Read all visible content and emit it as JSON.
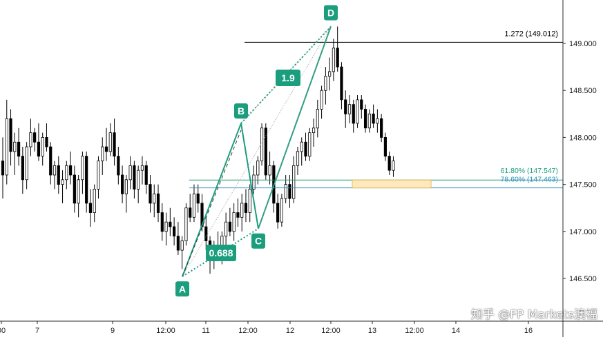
{
  "chart_data": {
    "type": "candlestick",
    "instrument_note": "USDJPY-style price chart with Gartley/ABCD harmonic pattern",
    "y_range": [
      146.2,
      149.45
    ],
    "y_ticks": [
      "146.500",
      "147.000",
      "147.500",
      "148.000",
      "148.500",
      "149.000"
    ],
    "x_ticks": [
      "00",
      "7",
      "9",
      "12:00",
      "11",
      "12:00",
      "12",
      "12:00",
      "13",
      "12:00",
      "14",
      "16"
    ],
    "candle_colors": {
      "up": "#ffffff",
      "down": "#000000",
      "wick": "#000000"
    },
    "pattern_color": "#1a9e7e",
    "pattern_points": [
      {
        "label": "A",
        "price": 146.52
      },
      {
        "label": "B",
        "price": 148.15
      },
      {
        "label": "C",
        "price": 147.03
      },
      {
        "label": "D",
        "price": 149.18
      }
    ],
    "ratios": [
      {
        "label": "0.688"
      },
      {
        "label": "1.9"
      }
    ],
    "levels": [
      {
        "label": "1.272 (149.012)",
        "price": 149.012,
        "color": "#000000"
      },
      {
        "label": "61.80% (147.547)",
        "price": 147.547,
        "color": "#1a9e7e"
      },
      {
        "label": "78.60% (147.463)",
        "price": 147.463,
        "color": "#2a8fbf"
      }
    ],
    "zone": {
      "from": 147.463,
      "to": 147.547,
      "fill": "#fde9c0",
      "stroke": "#f0b64a"
    },
    "ohlc": [
      [
        147.75,
        148.0,
        147.35,
        147.6
      ],
      [
        147.6,
        148.4,
        147.5,
        148.2
      ],
      [
        148.2,
        148.3,
        147.7,
        147.85
      ],
      [
        147.85,
        148.05,
        147.6,
        147.95
      ],
      [
        147.95,
        148.1,
        147.7,
        147.8
      ],
      [
        147.8,
        147.9,
        147.4,
        147.55
      ],
      [
        147.55,
        147.95,
        147.45,
        147.9
      ],
      [
        147.9,
        148.2,
        147.8,
        148.05
      ],
      [
        148.05,
        148.1,
        147.85,
        147.95
      ],
      [
        147.95,
        148.15,
        147.75,
        147.8
      ],
      [
        147.8,
        148.05,
        147.7,
        148.0
      ],
      [
        148.0,
        148.15,
        147.85,
        147.9
      ],
      [
        147.9,
        147.95,
        147.5,
        147.6
      ],
      [
        147.6,
        147.75,
        147.45,
        147.7
      ],
      [
        147.7,
        147.8,
        147.4,
        147.5
      ],
      [
        147.5,
        147.65,
        147.3,
        147.55
      ],
      [
        147.55,
        147.75,
        147.45,
        147.7
      ],
      [
        147.7,
        147.85,
        147.5,
        147.6
      ],
      [
        147.6,
        147.7,
        147.2,
        147.3
      ],
      [
        147.3,
        147.6,
        147.15,
        147.55
      ],
      [
        147.55,
        147.85,
        147.4,
        147.8
      ],
      [
        147.8,
        147.85,
        147.2,
        147.3
      ],
      [
        147.3,
        147.45,
        147.05,
        147.2
      ],
      [
        147.2,
        147.5,
        147.1,
        147.45
      ],
      [
        147.45,
        147.8,
        147.35,
        147.75
      ],
      [
        147.75,
        148.0,
        147.6,
        147.9
      ],
      [
        147.9,
        148.1,
        147.75,
        147.85
      ],
      [
        147.85,
        148.15,
        147.8,
        148.05
      ],
      [
        148.05,
        148.2,
        147.7,
        147.8
      ],
      [
        147.8,
        147.9,
        147.5,
        147.6
      ],
      [
        147.6,
        147.7,
        147.3,
        147.4
      ],
      [
        147.4,
        147.6,
        147.2,
        147.55
      ],
      [
        147.55,
        147.8,
        147.45,
        147.7
      ],
      [
        147.7,
        147.75,
        147.35,
        147.45
      ],
      [
        147.45,
        147.7,
        147.3,
        147.65
      ],
      [
        147.65,
        147.8,
        147.5,
        147.7
      ],
      [
        147.7,
        147.75,
        147.4,
        147.5
      ],
      [
        147.5,
        147.6,
        147.2,
        147.3
      ],
      [
        147.3,
        147.5,
        147.15,
        147.4
      ],
      [
        147.4,
        147.5,
        147.1,
        147.2
      ],
      [
        147.2,
        147.3,
        146.9,
        147.0
      ],
      [
        147.0,
        147.2,
        146.85,
        147.1
      ],
      [
        147.1,
        147.25,
        146.95,
        147.05
      ],
      [
        147.05,
        147.15,
        146.85,
        146.95
      ],
      [
        146.95,
        147.1,
        146.75,
        146.8
      ],
      [
        146.8,
        146.95,
        146.6,
        146.9
      ],
      [
        146.9,
        147.3,
        146.85,
        147.25
      ],
      [
        147.25,
        147.4,
        147.1,
        147.15
      ],
      [
        147.15,
        147.5,
        147.1,
        147.4
      ],
      [
        147.4,
        147.5,
        147.2,
        147.3
      ],
      [
        147.3,
        147.4,
        147.0,
        147.05
      ],
      [
        147.05,
        147.15,
        146.8,
        146.9
      ],
      [
        146.9,
        146.95,
        146.55,
        146.7
      ],
      [
        146.7,
        146.9,
        146.6,
        146.85
      ],
      [
        146.85,
        147.0,
        146.7,
        146.75
      ],
      [
        146.75,
        147.0,
        146.65,
        146.95
      ],
      [
        146.95,
        147.2,
        146.85,
        147.1
      ],
      [
        147.1,
        147.25,
        146.95,
        147.0
      ],
      [
        147.0,
        147.3,
        146.9,
        147.2
      ],
      [
        147.2,
        147.35,
        147.05,
        147.15
      ],
      [
        147.15,
        147.4,
        147.0,
        147.3
      ],
      [
        147.3,
        147.45,
        147.1,
        147.2
      ],
      [
        147.2,
        147.5,
        147.1,
        147.45
      ],
      [
        147.45,
        147.7,
        147.4,
        147.6
      ],
      [
        147.6,
        147.8,
        147.5,
        147.75
      ],
      [
        147.75,
        148.15,
        147.7,
        148.1
      ],
      [
        148.1,
        148.15,
        147.55,
        147.6
      ],
      [
        147.6,
        147.85,
        147.5,
        147.7
      ],
      [
        147.7,
        147.75,
        147.2,
        147.3
      ],
      [
        147.3,
        147.4,
        147.03,
        147.1
      ],
      [
        147.1,
        147.4,
        147.05,
        147.35
      ],
      [
        147.35,
        147.6,
        147.3,
        147.5
      ],
      [
        147.5,
        147.6,
        147.25,
        147.35
      ],
      [
        147.35,
        147.8,
        147.3,
        147.7
      ],
      [
        147.7,
        147.9,
        147.6,
        147.85
      ],
      [
        147.85,
        148.0,
        147.7,
        147.95
      ],
      [
        147.95,
        148.05,
        147.75,
        147.8
      ],
      [
        147.8,
        148.1,
        147.75,
        148.05
      ],
      [
        148.05,
        148.2,
        147.9,
        148.1
      ],
      [
        148.1,
        148.4,
        148.0,
        148.3
      ],
      [
        148.3,
        148.55,
        148.2,
        148.5
      ],
      [
        148.5,
        148.75,
        148.35,
        148.65
      ],
      [
        148.65,
        148.85,
        148.5,
        148.7
      ],
      [
        148.7,
        149.05,
        148.6,
        148.95
      ],
      [
        148.95,
        149.18,
        148.7,
        148.75
      ],
      [
        148.75,
        148.8,
        148.3,
        148.4
      ],
      [
        148.4,
        148.5,
        148.1,
        148.25
      ],
      [
        148.25,
        148.45,
        148.15,
        148.35
      ],
      [
        148.35,
        148.4,
        148.05,
        148.15
      ],
      [
        148.15,
        148.45,
        148.1,
        148.4
      ],
      [
        148.4,
        148.45,
        148.2,
        148.3
      ],
      [
        148.3,
        148.35,
        148.05,
        148.1
      ],
      [
        148.1,
        148.3,
        148.05,
        148.25
      ],
      [
        148.25,
        148.35,
        148.1,
        148.15
      ],
      [
        148.15,
        148.3,
        148.05,
        148.2
      ],
      [
        148.2,
        148.25,
        147.95,
        148.0
      ],
      [
        148.0,
        148.05,
        147.75,
        147.8
      ],
      [
        147.8,
        147.85,
        147.6,
        147.65
      ],
      [
        147.65,
        147.8,
        147.58,
        147.75
      ]
    ]
  },
  "watermark": "知乎 @FP Markets澳福"
}
